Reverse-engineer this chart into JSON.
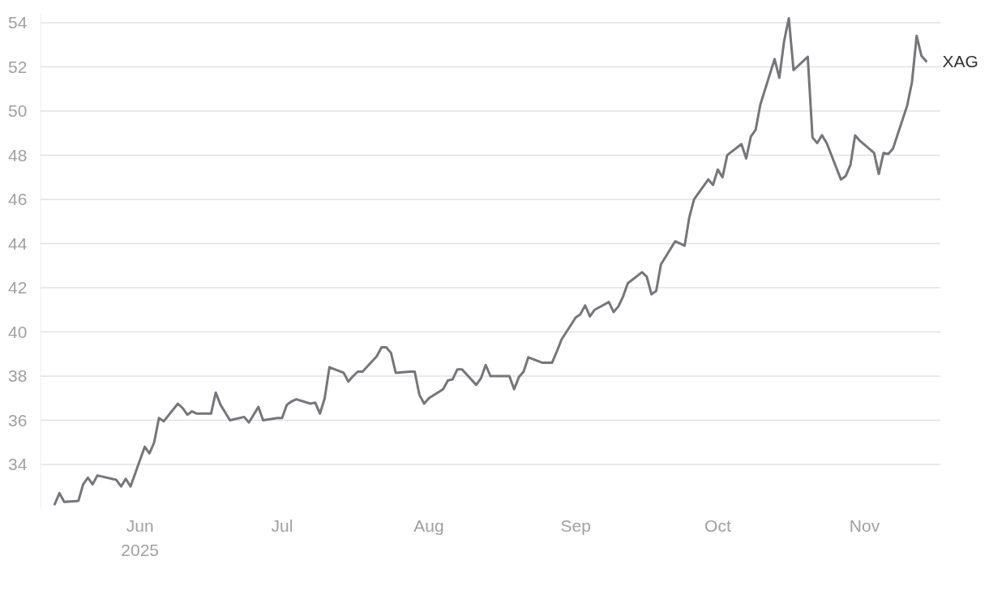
{
  "chart_data": {
    "type": "line",
    "xlim": [
      "2025-05-11",
      "2025-11-17"
    ],
    "ylim": [
      32,
      54.4
    ],
    "yticks": [
      34,
      36,
      38,
      40,
      42,
      44,
      46,
      48,
      50,
      52,
      54
    ],
    "xticks": [
      {
        "value": "2025-06-01",
        "label": "Jun\n2025"
      },
      {
        "value": "2025-07-01",
        "label": "Jul"
      },
      {
        "value": "2025-08-01",
        "label": "Aug"
      },
      {
        "value": "2025-09-01",
        "label": "Sep"
      },
      {
        "value": "2025-10-01",
        "label": "Oct"
      },
      {
        "value": "2025-11-01",
        "label": "Nov"
      }
    ],
    "grid": "y",
    "legend": false,
    "marker": "none",
    "line_style": "solid",
    "x": [
      "2025-05-14",
      "2025-05-15",
      "2025-05-16",
      "2025-05-19",
      "2025-05-20",
      "2025-05-21",
      "2025-05-22",
      "2025-05-23",
      "2025-05-27",
      "2025-05-28",
      "2025-05-29",
      "2025-05-30",
      "2025-06-02",
      "2025-06-03",
      "2025-06-04",
      "2025-06-05",
      "2025-06-06",
      "2025-06-09",
      "2025-06-10",
      "2025-06-11",
      "2025-06-12",
      "2025-06-13",
      "2025-06-16",
      "2025-06-17",
      "2025-06-18",
      "2025-06-20",
      "2025-06-23",
      "2025-06-24",
      "2025-06-26",
      "2025-06-27",
      "2025-06-30",
      "2025-07-01",
      "2025-07-02",
      "2025-07-03",
      "2025-07-04",
      "2025-07-07",
      "2025-07-08",
      "2025-07-09",
      "2025-07-10",
      "2025-07-11",
      "2025-07-14",
      "2025-07-15",
      "2025-07-16",
      "2025-07-17",
      "2025-07-18",
      "2025-07-21",
      "2025-07-22",
      "2025-07-23",
      "2025-07-24",
      "2025-07-25",
      "2025-07-28",
      "2025-07-29",
      "2025-07-30",
      "2025-07-31",
      "2025-08-01",
      "2025-08-04",
      "2025-08-05",
      "2025-08-06",
      "2025-08-07",
      "2025-08-08",
      "2025-08-11",
      "2025-08-12",
      "2025-08-13",
      "2025-08-14",
      "2025-08-18",
      "2025-08-19",
      "2025-08-20",
      "2025-08-21",
      "2025-08-22",
      "2025-08-25",
      "2025-08-27",
      "2025-08-28",
      "2025-08-29",
      "2025-09-01",
      "2025-09-02",
      "2025-09-03",
      "2025-09-04",
      "2025-09-05",
      "2025-09-08",
      "2025-09-09",
      "2025-09-10",
      "2025-09-11",
      "2025-09-12",
      "2025-09-15",
      "2025-09-16",
      "2025-09-17",
      "2025-09-18",
      "2025-09-19",
      "2025-09-22",
      "2025-09-23",
      "2025-09-24",
      "2025-09-25",
      "2025-09-26",
      "2025-09-29",
      "2025-09-30",
      "2025-10-01",
      "2025-10-02",
      "2025-10-03",
      "2025-10-06",
      "2025-10-07",
      "2025-10-08",
      "2025-10-09",
      "2025-10-10",
      "2025-10-13",
      "2025-10-14",
      "2025-10-15",
      "2025-10-16",
      "2025-10-17",
      "2025-10-20",
      "2025-10-21",
      "2025-10-22",
      "2025-10-23",
      "2025-10-24",
      "2025-10-27",
      "2025-10-28",
      "2025-10-29",
      "2025-10-30",
      "2025-10-31",
      "2025-11-03",
      "2025-11-04",
      "2025-11-05",
      "2025-11-06",
      "2025-11-07",
      "2025-11-10",
      "2025-11-11",
      "2025-11-12",
      "2025-11-13",
      "2025-11-14"
    ],
    "series": [
      {
        "name": "XAG",
        "color": "#76767a",
        "values": [
          32.2,
          32.7,
          32.3,
          32.35,
          33.1,
          33.4,
          33.1,
          33.5,
          33.3,
          33.0,
          33.35,
          33.0,
          34.8,
          34.5,
          35.0,
          36.1,
          35.95,
          36.75,
          36.55,
          36.25,
          36.4,
          36.3,
          36.3,
          37.25,
          36.7,
          36.0,
          36.15,
          35.9,
          36.6,
          36.0,
          36.1,
          36.1,
          36.7,
          36.85,
          36.95,
          36.75,
          36.8,
          36.3,
          37.0,
          38.4,
          38.15,
          37.75,
          38.0,
          38.2,
          38.2,
          38.9,
          39.3,
          39.3,
          39.05,
          38.15,
          38.2,
          38.2,
          37.15,
          36.75,
          37.0,
          37.4,
          37.8,
          37.85,
          38.3,
          38.3,
          37.6,
          37.9,
          38.5,
          38.0,
          38.0,
          37.4,
          37.95,
          38.2,
          38.85,
          38.6,
          38.6,
          39.1,
          39.65,
          40.65,
          40.8,
          41.2,
          40.7,
          41.0,
          41.35,
          40.9,
          41.15,
          41.6,
          42.2,
          42.7,
          42.5,
          41.7,
          41.85,
          43.05,
          44.1,
          44.0,
          43.9,
          45.2,
          46.0,
          46.9,
          46.65,
          47.35,
          47.0,
          48.0,
          48.5,
          47.85,
          48.85,
          49.15,
          50.3,
          52.35,
          51.5,
          53.15,
          54.2,
          51.85,
          52.45,
          48.8,
          48.55,
          48.9,
          48.55,
          46.9,
          47.05,
          47.55,
          48.9,
          48.65,
          48.1,
          47.15,
          48.1,
          48.05,
          48.3,
          50.25,
          51.3,
          53.4,
          52.5,
          52.25
        ]
      }
    ]
  }
}
